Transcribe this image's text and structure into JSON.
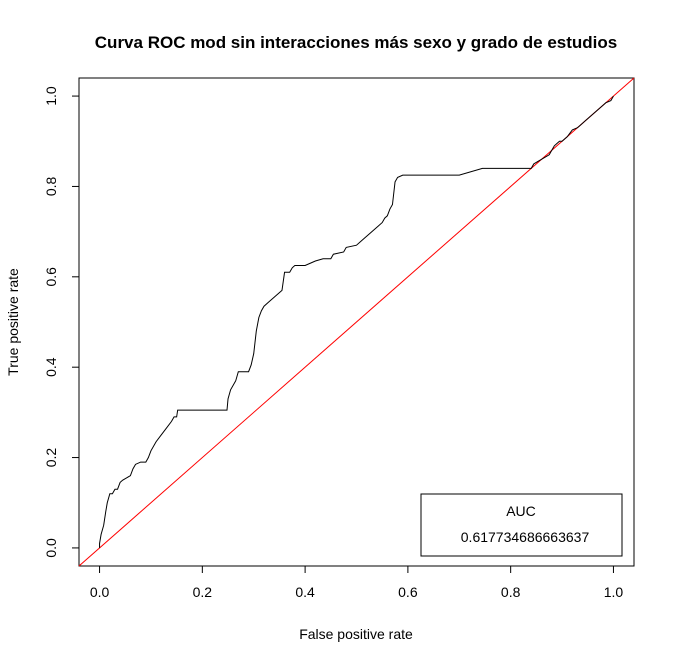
{
  "chart_data": {
    "type": "line",
    "title": "Curva ROC mod sin interacciones más sexo y grado de estudios",
    "xlabel": "False positive rate",
    "ylabel": "True positive rate",
    "xlim": [
      -0.04,
      1.04
    ],
    "ylim": [
      -0.04,
      1.04
    ],
    "xticks": [
      0.0,
      0.2,
      0.4,
      0.6,
      0.8,
      1.0
    ],
    "yticks": [
      0.0,
      0.2,
      0.4,
      0.6,
      0.8,
      1.0
    ],
    "xtick_labels": [
      "0.0",
      "0.2",
      "0.4",
      "0.6",
      "0.8",
      "1.0"
    ],
    "ytick_labels": [
      "0.0",
      "0.2",
      "0.4",
      "0.6",
      "0.8",
      "1.0"
    ],
    "grid": false,
    "series": [
      {
        "color": "#000000",
        "x": [
          0.0,
          0.0,
          0.003,
          0.008,
          0.012,
          0.015,
          0.02,
          0.025,
          0.03,
          0.035,
          0.04,
          0.045,
          0.06,
          0.065,
          0.07,
          0.08,
          0.09,
          0.095,
          0.1,
          0.11,
          0.12,
          0.13,
          0.14,
          0.145,
          0.15,
          0.152,
          0.2,
          0.248,
          0.25,
          0.255,
          0.265,
          0.27,
          0.29,
          0.295,
          0.3,
          0.305,
          0.31,
          0.315,
          0.32,
          0.33,
          0.34,
          0.355,
          0.36,
          0.37,
          0.375,
          0.38,
          0.4,
          0.41,
          0.42,
          0.435,
          0.45,
          0.455,
          0.475,
          0.48,
          0.5,
          0.51,
          0.52,
          0.53,
          0.54,
          0.55,
          0.555,
          0.56,
          0.565,
          0.57,
          0.575,
          0.58,
          0.59,
          0.7,
          0.745,
          0.75,
          0.84,
          0.845,
          0.86,
          0.875,
          0.88,
          0.885,
          0.89,
          0.895,
          0.9,
          0.91,
          0.92,
          0.93,
          0.935,
          0.945,
          0.95,
          0.96,
          0.965,
          0.97,
          0.98,
          0.985,
          0.995,
          1.0
        ],
        "y": [
          0.0,
          0.01,
          0.03,
          0.05,
          0.08,
          0.1,
          0.12,
          0.12,
          0.13,
          0.13,
          0.145,
          0.15,
          0.16,
          0.175,
          0.185,
          0.19,
          0.19,
          0.2,
          0.215,
          0.235,
          0.25,
          0.265,
          0.28,
          0.29,
          0.29,
          0.305,
          0.305,
          0.305,
          0.33,
          0.35,
          0.37,
          0.39,
          0.39,
          0.405,
          0.43,
          0.48,
          0.51,
          0.525,
          0.535,
          0.545,
          0.555,
          0.57,
          0.61,
          0.61,
          0.62,
          0.625,
          0.625,
          0.63,
          0.635,
          0.64,
          0.64,
          0.65,
          0.655,
          0.665,
          0.67,
          0.68,
          0.69,
          0.7,
          0.71,
          0.72,
          0.73,
          0.735,
          0.75,
          0.76,
          0.81,
          0.82,
          0.825,
          0.825,
          0.84,
          0.84,
          0.84,
          0.85,
          0.86,
          0.87,
          0.88,
          0.89,
          0.895,
          0.9,
          0.9,
          0.91,
          0.925,
          0.93,
          0.935,
          0.945,
          0.95,
          0.96,
          0.965,
          0.97,
          0.98,
          0.985,
          0.99,
          1.0
        ]
      },
      {
        "color": "#ff0000",
        "x": [
          -0.04,
          1.04
        ],
        "y": [
          -0.04,
          1.04
        ]
      }
    ],
    "legend": {
      "position": "bottom-right",
      "title": "AUC",
      "value": "0.617734686663637"
    }
  }
}
